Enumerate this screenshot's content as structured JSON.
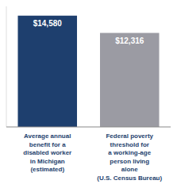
{
  "chart_data": {
    "type": "bar",
    "categories": [
      "Average annual\nbenefit for a\ndisabled worker\nin Michigan\n(estimated)",
      "Federal poverty\nthreshold for\na working-age\nperson living\nalone\n(U.S. Census Bureau)"
    ],
    "values": [
      14580,
      12316
    ],
    "value_labels": [
      "$14,580",
      "$12,316"
    ],
    "colors": [
      "#1e3f6e",
      "#9b9ba3"
    ],
    "ylim": [
      0,
      15800
    ],
    "data_labels": true,
    "tick_labels": false,
    "grid": false
  }
}
